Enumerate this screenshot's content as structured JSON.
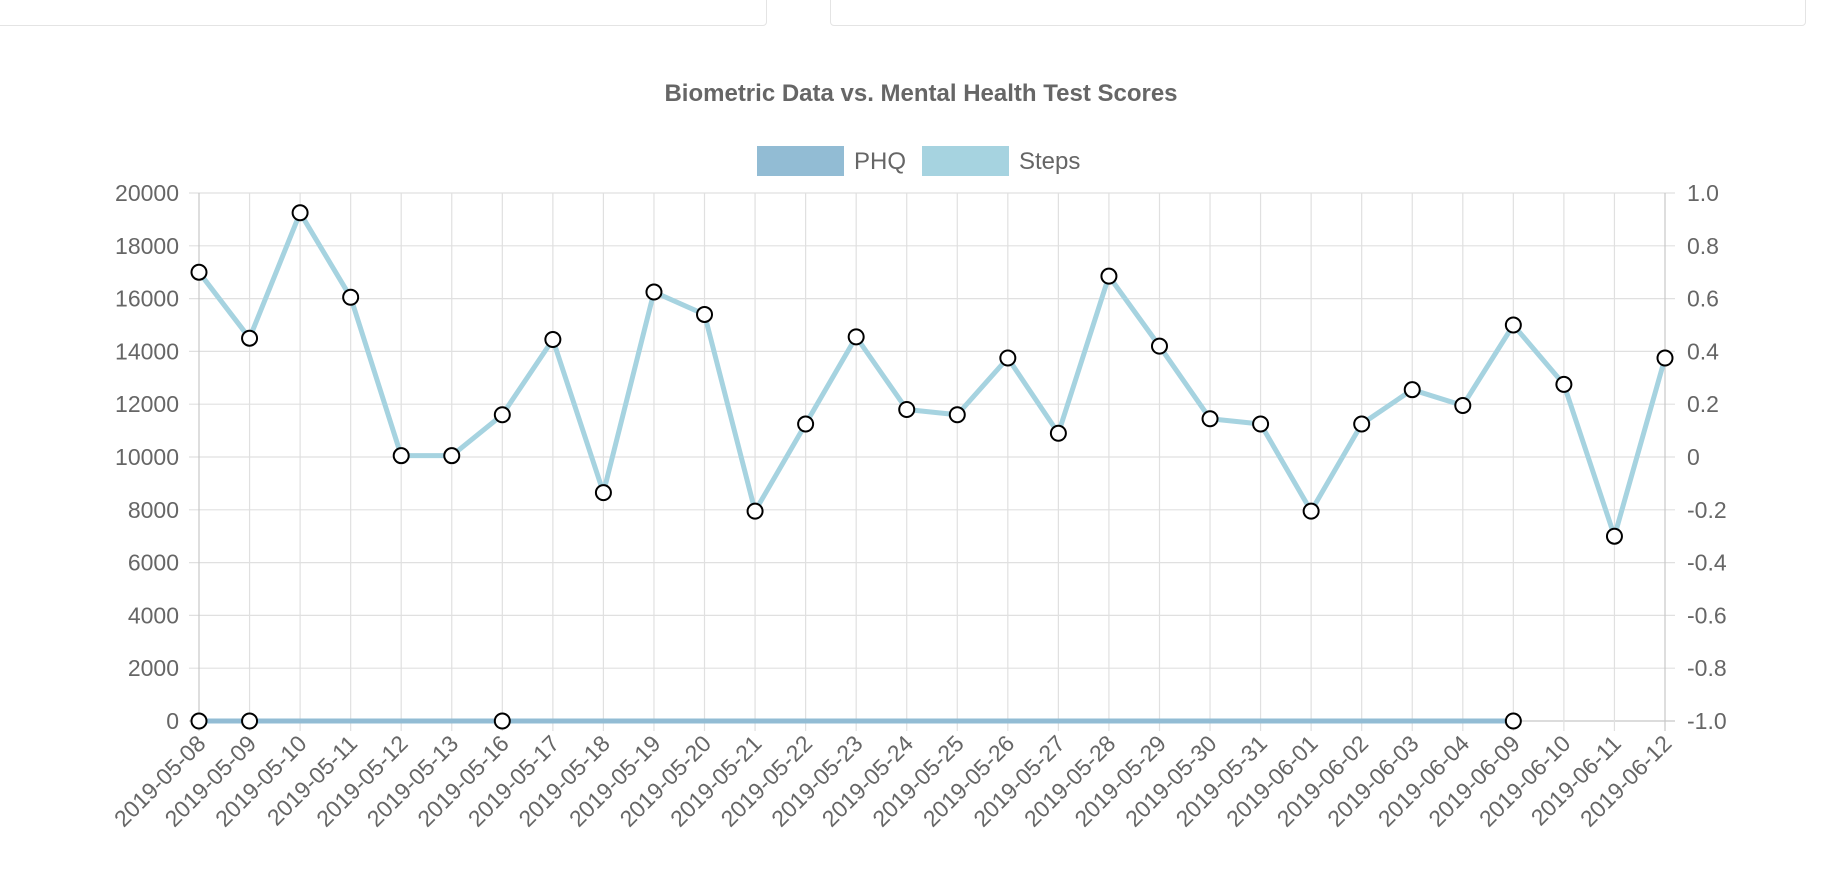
{
  "panels": {
    "left": "",
    "right": ""
  },
  "chart_data": {
    "type": "line",
    "title": "Biometric Data vs. Mental Health Test Scores",
    "legend_position": "top-center",
    "grid": true,
    "colors": {
      "PHQ": "#92bcd4",
      "Steps": "#a6d3e0",
      "point_fill": "#ffffff",
      "point_stroke": "#000000",
      "grid": "#e0e0e0",
      "text": "#666666"
    },
    "categories": [
      "2019-05-08",
      "2019-05-09",
      "2019-05-10",
      "2019-05-11",
      "2019-05-12",
      "2019-05-13",
      "2019-05-16",
      "2019-05-17",
      "2019-05-18",
      "2019-05-19",
      "2019-05-20",
      "2019-05-21",
      "2019-05-22",
      "2019-05-23",
      "2019-05-24",
      "2019-05-25",
      "2019-05-26",
      "2019-05-27",
      "2019-05-28",
      "2019-05-29",
      "2019-05-30",
      "2019-05-31",
      "2019-06-01",
      "2019-06-02",
      "2019-06-03",
      "2019-06-04",
      "2019-06-09",
      "2019-06-10",
      "2019-06-11",
      "2019-06-12"
    ],
    "y_left": {
      "min": 0,
      "max": 20000,
      "step": 2000,
      "ticks": [
        "20000",
        "18000",
        "16000",
        "14000",
        "12000",
        "10000",
        "8000",
        "6000",
        "4000",
        "2000",
        "0"
      ]
    },
    "y_right": {
      "min": -1,
      "max": 1,
      "step": 0.2,
      "ticks": [
        "1.0",
        "0.8",
        "0.6",
        "0.4",
        "0.2",
        "0",
        "-0.2",
        "-0.4",
        "-0.6",
        "-0.8",
        "-1.0"
      ]
    },
    "series": [
      {
        "name": "PHQ",
        "axis": "left",
        "values": [
          0,
          0,
          null,
          null,
          null,
          null,
          0,
          null,
          null,
          null,
          null,
          null,
          null,
          null,
          null,
          null,
          null,
          null,
          null,
          null,
          null,
          null,
          null,
          null,
          null,
          null,
          0,
          null,
          null,
          null
        ],
        "span_gaps": true
      },
      {
        "name": "Steps",
        "axis": "left",
        "values": [
          17000,
          14500,
          19250,
          16050,
          10050,
          10050,
          11600,
          14450,
          8650,
          16250,
          15400,
          7950,
          11250,
          14550,
          11800,
          11600,
          13750,
          10900,
          16850,
          14200,
          11450,
          11250,
          7950,
          11250,
          12550,
          11950,
          15000,
          12750,
          7000,
          13750
        ]
      }
    ]
  }
}
